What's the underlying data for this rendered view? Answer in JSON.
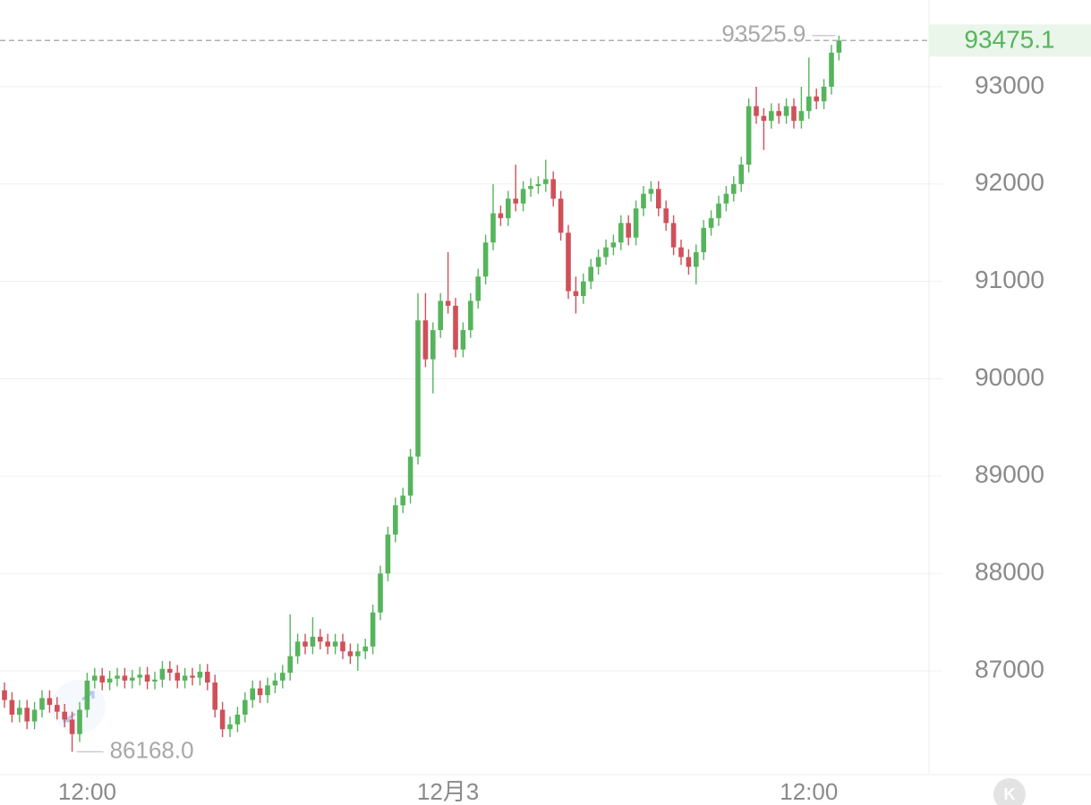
{
  "chart_data": {
    "type": "candlestick",
    "categories": [
      null,
      null,
      null,
      null,
      null,
      null,
      null,
      null,
      null,
      null,
      null,
      "12:00",
      null,
      null,
      null,
      null,
      null,
      null,
      null,
      null,
      null,
      null,
      null,
      null,
      null,
      null,
      null,
      null,
      null,
      null,
      null,
      null,
      null,
      null,
      null,
      null,
      null,
      null,
      null,
      null,
      null,
      null,
      null,
      null,
      null,
      null,
      null,
      null,
      null,
      null,
      null,
      null,
      null,
      null,
      null,
      null,
      null,
      null,
      null,
      "12月3",
      null,
      null,
      null,
      null,
      null,
      null,
      null,
      null,
      null,
      null,
      null,
      null,
      null,
      null,
      null,
      null,
      null,
      null,
      null,
      null,
      null,
      null,
      null,
      null,
      null,
      null,
      null,
      null,
      null,
      null,
      null,
      null,
      null,
      null,
      null,
      null,
      null,
      null,
      null,
      null,
      null,
      null,
      null,
      null,
      null,
      null,
      null,
      "12:00",
      null,
      null,
      null,
      null
    ],
    "open": [
      86800,
      86700,
      86550,
      86620,
      86480,
      86600,
      86720,
      86650,
      86580,
      86500,
      86350,
      86600,
      86900,
      86950,
      86880,
      86920,
      86950,
      86900,
      86930,
      86960,
      86890,
      86910,
      87020,
      86980,
      86900,
      86950,
      86930,
      86990,
      86880,
      86600,
      86400,
      86450,
      86550,
      86700,
      86820,
      86750,
      86850,
      86900,
      86980,
      87150,
      87300,
      87250,
      87350,
      87300,
      87250,
      87300,
      87200,
      87150,
      87200,
      87250,
      87600,
      88000,
      88400,
      88700,
      88800,
      89200,
      90600,
      90200,
      90500,
      90800,
      90750,
      90300,
      90500,
      90800,
      91050,
      91400,
      91700,
      91650,
      91850,
      91800,
      91950,
      91980,
      92000,
      92050,
      91850,
      91500,
      90900,
      90850,
      91000,
      91150,
      91250,
      91350,
      91400,
      91600,
      91450,
      91750,
      91900,
      91950,
      91750,
      91600,
      91350,
      91250,
      91150,
      91300,
      91550,
      91650,
      91800,
      91900,
      92000,
      92200,
      92800,
      92700,
      92650,
      92750,
      92700,
      92800,
      92650,
      92750,
      92900,
      92850,
      93000,
      93350
    ],
    "high": [
      86880,
      86780,
      86700,
      86700,
      86680,
      86800,
      86800,
      86730,
      86660,
      86580,
      86680,
      86980,
      87030,
      87030,
      87000,
      87030,
      87030,
      87010,
      87040,
      87040,
      86990,
      87100,
      87100,
      87060,
      87030,
      87030,
      87070,
      87070,
      86960,
      86680,
      86530,
      86630,
      86780,
      86900,
      86900,
      86930,
      86980,
      87060,
      87580,
      87380,
      87380,
      87550,
      87430,
      87380,
      87380,
      87380,
      87280,
      87280,
      87330,
      87680,
      88080,
      88480,
      88780,
      88880,
      89280,
      90880,
      90880,
      90580,
      90880,
      91300,
      90830,
      90580,
      90880,
      91130,
      91480,
      92000,
      91780,
      91930,
      92200,
      92030,
      92060,
      92080,
      92250,
      92130,
      91930,
      91580,
      91050,
      91080,
      91230,
      91330,
      91430,
      91480,
      91680,
      91680,
      91830,
      91980,
      92030,
      92030,
      91830,
      91680,
      91430,
      91330,
      91380,
      91630,
      91730,
      91880,
      91980,
      92080,
      92280,
      92880,
      93000,
      92780,
      92830,
      92830,
      92880,
      92880,
      93000,
      93300,
      92980,
      93080,
      93430,
      93525.9
    ],
    "low": [
      86620,
      86470,
      86470,
      86400,
      86400,
      86520,
      86570,
      86500,
      86420,
      86168.0,
      86270,
      86520,
      86820,
      86800,
      86800,
      86840,
      86820,
      86820,
      86850,
      86810,
      86810,
      86830,
      86900,
      86820,
      86820,
      86850,
      86850,
      86800,
      86520,
      86320,
      86320,
      86370,
      86470,
      86620,
      86670,
      86670,
      86770,
      86820,
      86900,
      87070,
      87170,
      87170,
      87220,
      87170,
      87170,
      87120,
      87070,
      87000,
      87120,
      87170,
      87520,
      87920,
      88320,
      88620,
      88720,
      89120,
      90120,
      89850,
      90420,
      90670,
      90220,
      90220,
      90420,
      90720,
      90970,
      91320,
      91570,
      91570,
      91720,
      91720,
      91870,
      91900,
      91920,
      91770,
      91420,
      90820,
      90670,
      90770,
      90920,
      91070,
      91170,
      91270,
      91320,
      91370,
      91370,
      91670,
      91820,
      91670,
      91520,
      91270,
      91170,
      91070,
      90970,
      91220,
      91470,
      91570,
      91720,
      91820,
      91920,
      92120,
      92620,
      92350,
      92570,
      92620,
      92620,
      92570,
      92570,
      92670,
      92770,
      92770,
      92920,
      93270
    ],
    "close": [
      86700,
      86550,
      86620,
      86480,
      86600,
      86720,
      86650,
      86580,
      86500,
      86350,
      86600,
      86900,
      86950,
      86880,
      86920,
      86950,
      86900,
      86930,
      86960,
      86890,
      86910,
      87020,
      86980,
      86900,
      86950,
      86930,
      86990,
      86880,
      86600,
      86400,
      86450,
      86550,
      86700,
      86820,
      86750,
      86850,
      86900,
      86980,
      87150,
      87300,
      87250,
      87350,
      87300,
      87250,
      87300,
      87200,
      87150,
      87200,
      87250,
      87600,
      88000,
      88400,
      88700,
      88800,
      89200,
      90600,
      90200,
      90500,
      90800,
      90750,
      90300,
      90500,
      90800,
      91050,
      91400,
      91700,
      91650,
      91850,
      91800,
      91950,
      91980,
      92000,
      92050,
      91850,
      91500,
      90900,
      90850,
      91000,
      91150,
      91250,
      91350,
      91400,
      91600,
      91450,
      91750,
      91900,
      91950,
      91750,
      91600,
      91350,
      91250,
      91150,
      91300,
      91550,
      91650,
      91800,
      91900,
      92000,
      92200,
      92800,
      92700,
      92650,
      92750,
      92700,
      92800,
      92650,
      92750,
      92900,
      92850,
      93000,
      93350,
      93475.1
    ],
    "up_color": "#56b45c",
    "down_color": "#d0505a",
    "ylim": [
      85934,
      93891
    ],
    "yticks": [
      87000,
      88000,
      89000,
      90000,
      91000,
      92000,
      93000
    ],
    "grid": true,
    "max_label": "93525.9",
    "min_label": "86168.0",
    "last_price": {
      "value": 93475.1,
      "label": "93475.1"
    },
    "badge": "K"
  }
}
